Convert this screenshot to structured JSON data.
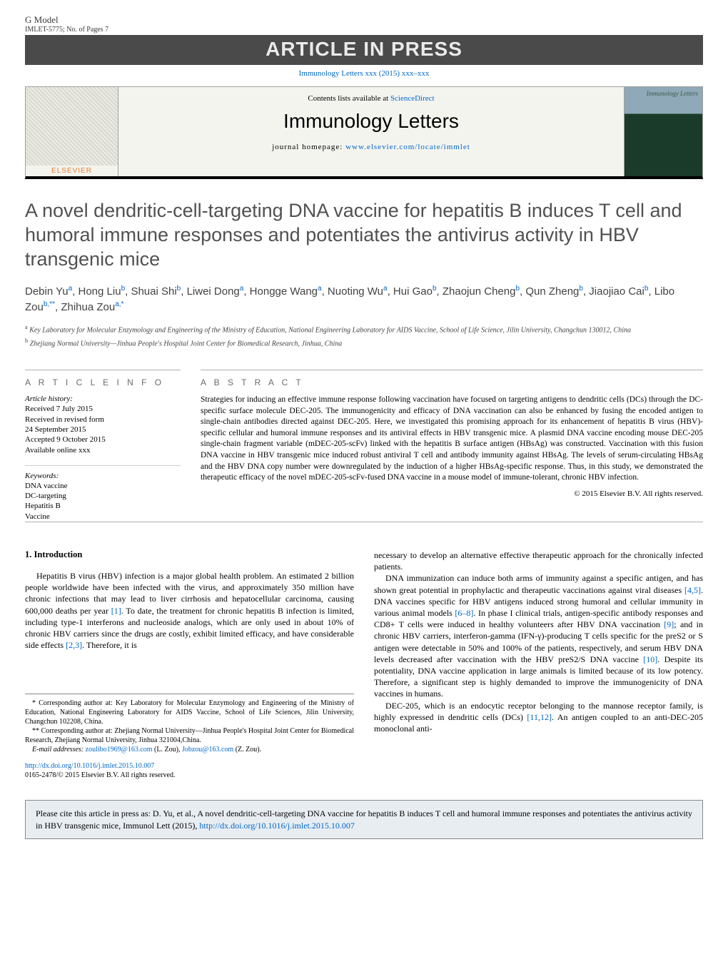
{
  "header": {
    "gmodel": "G Model",
    "identifier": "IMLET-5775;   No. of Pages 7",
    "banner": "ARTICLE IN PRESS",
    "journal_ref_text": "Immunology Letters xxx (2015) xxx–xxx",
    "contents_prefix": "Contents lists available at ",
    "contents_link": "ScienceDirect",
    "journal_title": "Immunology Letters",
    "homepage_prefix": "journal homepage: ",
    "homepage_link": "www.elsevier.com/locate/immlet",
    "elsevier": "ELSEVIER",
    "cover_label": "Immunology Letters"
  },
  "article": {
    "title": "A novel dendritic-cell-targeting DNA vaccine for hepatitis B induces T cell and humoral immune responses and potentiates the antivirus activity in HBV transgenic mice",
    "authors_html": "Debin Yu<sup>a</sup>, Hong Liu<sup>b</sup>, Shuai Shi<sup>b</sup>, Liwei Dong<sup>a</sup>, Hongge Wang<sup>a</sup>, Nuoting Wu<sup>a</sup>, Hui Gao<sup>b</sup>, Zhaojun Cheng<sup>b</sup>, Qun Zheng<sup>b</sup>, Jiaojiao Cai<sup>b</sup>, Libo Zou<sup>b,**</sup>, Zhihua Zou<sup>a,*</sup>",
    "affiliations": [
      {
        "sup": "a",
        "text": " Key Laboratory for Molecular Enzymology and Engineering of the Ministry of Education, National Engineering Laboratory for AIDS Vaccine, School of Life Science, Jilin University, Changchun 130012, China"
      },
      {
        "sup": "b",
        "text": " Zhejiang Normal University—Jinhua People's Hospital Joint Center for Biomedical Research, Jinhua, China"
      }
    ]
  },
  "info": {
    "label": "A R T I C L E   I N F O",
    "history_head": "Article history:",
    "history": [
      "Received 7 July 2015",
      "Received in revised form",
      "24 September 2015",
      "Accepted 9 October 2015",
      "Available online xxx"
    ],
    "kw_head": "Keywords:",
    "keywords": [
      "DNA vaccine",
      "DC-targeting",
      "Hepatitis B",
      "Vaccine"
    ]
  },
  "abstract": {
    "label": "A B S T R A C T",
    "text": "Strategies for inducing an effective immune response following vaccination have focused on targeting antigens to dendritic cells (DCs) through the DC-specific surface molecule DEC-205. The immunogenicity and efficacy of DNA vaccination can also be enhanced by fusing the encoded antigen to single-chain antibodies directed against DEC-205. Here, we investigated this promising approach for its enhancement of hepatitis B virus (HBV)-specific cellular and humoral immune responses and its antiviral effects in HBV transgenic mice. A plasmid DNA vaccine encoding mouse DEC-205 single-chain fragment variable (mDEC-205-scFv) linked with the hepatitis B surface antigen (HBsAg) was constructed. Vaccination with this fusion DNA vaccine in HBV transgenic mice induced robust antiviral T cell and antibody immunity against HBsAg. The levels of serum-circulating HBsAg and the HBV DNA copy number were downregulated by the induction of a higher HBsAg-specific response. Thus, in this study, we demonstrated the therapeutic efficacy of the novel mDEC-205-scFv-fused DNA vaccine in a mouse model of immune-tolerant, chronic HBV infection.",
    "copyright": "© 2015 Elsevier B.V. All rights reserved."
  },
  "body": {
    "intro_head": "1.  Introduction",
    "left_paras": [
      {
        "plain": "Hepatitis B virus (HBV) infection is a major global health problem. An estimated 2 billion people worldwide have been infected with the virus, and approximately 350 million have chronic infections that may lead to liver cirrhosis and hepatocellular carcinoma, causing 600,000 deaths per year ",
        "ref": "[1]",
        "tail": ". To date, the treatment for chronic hepatitis B infection is limited, including type-1 interferons and nucleoside analogs, which are only used in about 10% of chronic HBV carriers since the drugs are costly, exhibit limited efficacy, and have considerable side effects ",
        "ref2": "[2,3]",
        "tail2": ". Therefore, it is"
      }
    ],
    "right_paras": [
      {
        "plain": "necessary to develop an alternative effective therapeutic approach for the chronically infected patients.",
        "noindent": true
      },
      {
        "plain": "DNA immunization can induce both arms of immunity against a specific antigen, and has shown great potential in prophylactic and therapeutic vaccinations against viral diseases ",
        "ref": "[4,5]",
        "tail": ". DNA vaccines specific for HBV antigens induced strong humoral and cellular immunity in various animal models ",
        "ref2": "[6–8]",
        "tail2": ". In phase I clinical trials, antigen-specific antibody responses and CD8+ T cells were induced in healthy volunteers after HBV DNA vaccination ",
        "ref3": "[9]",
        "tail3": "; and in chronic HBV carriers, interferon-gamma (IFN-γ)-producing T cells specific for the preS2 or S antigen were detectable in 50% and 100% of the patients, respectively, and serum HBV DNA levels decreased after vaccination with the HBV preS2/S DNA vaccine ",
        "ref4": "[10]",
        "tail4": ". Despite its potentiality, DNA vaccine application in large animals is limited because of its low potency. Therefore, a significant step is highly demanded to improve the immunogenicity of DNA vaccines in humans."
      },
      {
        "plain": "DEC-205, which is an endocytic receptor belonging to the mannose receptor family, is highly expressed in dendritic cells (DCs) ",
        "ref": "[11,12]",
        "tail": ". An antigen coupled to an anti-DEC-205 monoclonal anti-"
      }
    ]
  },
  "footnotes": {
    "fn1_mark": "*",
    "fn1": " Corresponding author at: Key Laboratory for Molecular Enzymology and Engineering of the Ministry of Education, National Engineering Laboratory for AIDS Vaccine, School of Life Sciences, Jilin University, Changchun 102208, China.",
    "fn2_mark": "**",
    "fn2": " Corresponding author at: Zhejiang Normal University—Jinhua People's Hospital Joint Center for Biomedical Research, Zhejiang Normal University, Jinhua 321004,China.",
    "email_label": "E-mail addresses: ",
    "email1": "zoulibo1969@163.com",
    "email1_who": " (L. Zou), ",
    "email2": "Jobzou@163.com",
    "email2_who": " (Z. Zou)."
  },
  "doi": {
    "link": "http://dx.doi.org/10.1016/j.imlet.2015.10.007",
    "issn": "0165-2478/© 2015 Elsevier B.V. All rights reserved."
  },
  "citebox": {
    "text": "Please cite this article in press as: D. Yu, et al., A novel dendritic-cell-targeting DNA vaccine for hepatitis B induces T cell and humoral immune responses and potentiates the antivirus activity in HBV transgenic mice, Immunol Lett (2015), ",
    "link": "http://dx.doi.org/10.1016/j.imlet.2015.10.007"
  },
  "colors": {
    "link": "#0066cc",
    "banner_bg": "#4a4a4a",
    "citebox_bg": "#e8edf2",
    "text_gray": "#515151"
  }
}
